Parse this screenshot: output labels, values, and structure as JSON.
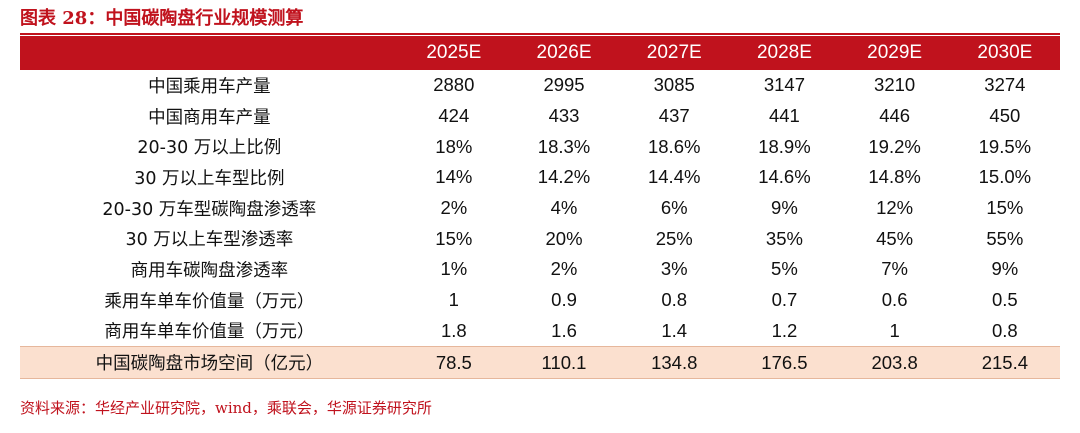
{
  "title": "图表 28：中国碳陶盘行业规模测算",
  "table": {
    "header": [
      "",
      "2025E",
      "2026E",
      "2027E",
      "2028E",
      "2029E",
      "2030E"
    ],
    "rows": [
      {
        "label": "中国乘用车产量",
        "values": [
          "2880",
          "2995",
          "3085",
          "3147",
          "3210",
          "3274"
        ]
      },
      {
        "label": "中国商用车产量",
        "values": [
          "424",
          "433",
          "437",
          "441",
          "446",
          "450"
        ]
      },
      {
        "label": "20-30 万以上比例",
        "values": [
          "18%",
          "18.3%",
          "18.6%",
          "18.9%",
          "19.2%",
          "19.5%"
        ]
      },
      {
        "label": "30 万以上车型比例",
        "values": [
          "14%",
          "14.2%",
          "14.4%",
          "14.6%",
          "14.8%",
          "15.0%"
        ]
      },
      {
        "label": "20-30 万车型碳陶盘渗透率",
        "values": [
          "2%",
          "4%",
          "6%",
          "9%",
          "12%",
          "15%"
        ]
      },
      {
        "label": "30 万以上车型渗透率",
        "values": [
          "15%",
          "20%",
          "25%",
          "35%",
          "45%",
          "55%"
        ]
      },
      {
        "label": "商用车碳陶盘渗透率",
        "values": [
          "1%",
          "2%",
          "3%",
          "5%",
          "7%",
          "9%"
        ]
      },
      {
        "label": "乘用车单车价值量（万元）",
        "values": [
          "1",
          "0.9",
          "0.8",
          "0.7",
          "0.6",
          "0.5"
        ]
      },
      {
        "label": "商用车单车价值量（万元）",
        "values": [
          "1.8",
          "1.6",
          "1.4",
          "1.2",
          "1",
          "0.8"
        ]
      },
      {
        "label": "中国碳陶盘市场空间（亿元）",
        "values": [
          "78.5",
          "110.1",
          "134.8",
          "176.5",
          "203.8",
          "215.4"
        ]
      }
    ]
  },
  "source": "资料来源：华经产业研究院，wind，乘联会，华源证券研究所",
  "colors": {
    "accent": "#c0121d",
    "total_row_bg": "#fbe0cf",
    "header_text": "#ffffff"
  }
}
